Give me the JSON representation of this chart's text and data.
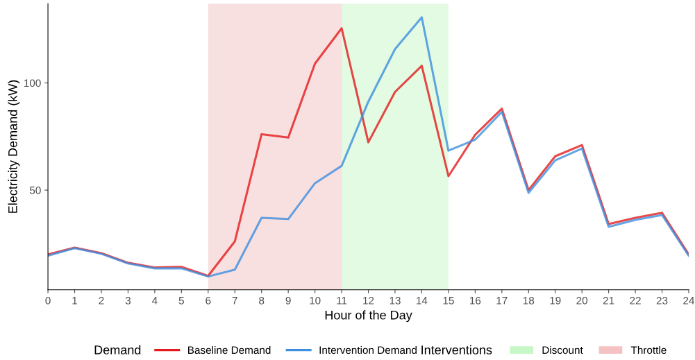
{
  "chart_data": {
    "type": "line",
    "xlabel": "Hour of the Day",
    "ylabel": "Electricity Demand (kW)",
    "x": [
      0,
      1,
      2,
      3,
      4,
      5,
      6,
      7,
      8,
      9,
      10,
      11,
      12,
      13,
      14,
      15,
      16,
      17,
      18,
      19,
      20,
      21,
      22,
      23,
      24
    ],
    "series": [
      {
        "name": "Baseline Demand",
        "color": "#e41a1c",
        "values": [
          20,
          23.2,
          20.6,
          16.1,
          13.9,
          14.2,
          10,
          26.1,
          76.1,
          74.5,
          109,
          125.5,
          72.3,
          95.8,
          108,
          56.5,
          75.8,
          88,
          50,
          65.8,
          71,
          34.2,
          37.1,
          39.4,
          20
        ]
      },
      {
        "name": "Intervention Demand",
        "color": "#3d8fe0",
        "values": [
          19.4,
          22.9,
          20.3,
          15.8,
          13.5,
          13.5,
          9.7,
          12.9,
          37.1,
          36.5,
          53.2,
          61.3,
          91.3,
          115.8,
          130.6,
          68.4,
          73.5,
          86.5,
          48.7,
          63.9,
          69.4,
          32.9,
          36.1,
          38.4,
          19.4
        ]
      }
    ],
    "bands": [
      {
        "axis": "x",
        "from": 11,
        "to": 15,
        "label": "Discount",
        "color": "#c6f7c6"
      },
      {
        "axis": "x",
        "from": 6,
        "to": 11,
        "label": "Throttle",
        "color": "#f4c2c2"
      }
    ],
    "legend_title": [
      "Demand",
      "Interventions"
    ],
    "xlim": [
      0,
      24
    ],
    "xticks": [
      0,
      1,
      2,
      3,
      4,
      5,
      6,
      7,
      8,
      9,
      10,
      11,
      12,
      13,
      14,
      15,
      16,
      17,
      18,
      19,
      20,
      21,
      22,
      23,
      24
    ],
    "ylim": [
      3.5,
      137
    ],
    "yticks": [
      50,
      100
    ],
    "grid": false,
    "legend": "bottom",
    "line_style": "solid",
    "marker": "none"
  }
}
